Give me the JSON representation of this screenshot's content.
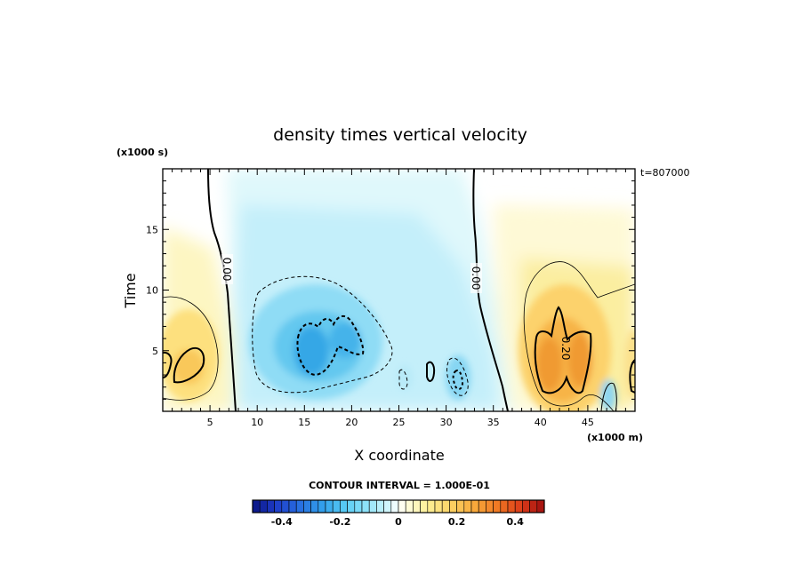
{
  "chart_data": {
    "type": "heatmap",
    "title": "density times vertical velocity",
    "xlabel": "X coordinate",
    "ylabel": "Time",
    "x_units": "(x1000 m)",
    "y_units": "(x1000 s)",
    "time_stamp": "t=807000",
    "contour_interval_label": "CONTOUR INTERVAL = 1.000E-01",
    "xlim": [
      0,
      50
    ],
    "ylim": [
      0,
      20
    ],
    "x_ticks": [
      5,
      10,
      15,
      20,
      25,
      30,
      35,
      40,
      45
    ],
    "y_ticks": [
      5,
      10,
      15
    ],
    "contour_labels": [
      "0.00",
      "0.00",
      "0.20"
    ],
    "colorbar": {
      "min": -0.5,
      "max": 0.5,
      "ticks": [
        "-0.4",
        "-0.2",
        "0",
        "0.2",
        "0.4"
      ],
      "tick_values": [
        -0.4,
        -0.2,
        0,
        0.2,
        0.4
      ]
    },
    "features": [
      {
        "x": 2.5,
        "y": 4.5,
        "value": 0.2
      },
      {
        "x": 15.5,
        "y": 5.0,
        "value": -0.23
      },
      {
        "x": 18.5,
        "y": 6.0,
        "value": -0.2
      },
      {
        "x": 31.0,
        "y": 2.5,
        "value": -0.15
      },
      {
        "x": 42.5,
        "y": 4.5,
        "value": 0.27
      },
      {
        "x": 45.0,
        "y": 5.0,
        "value": 0.25
      }
    ],
    "grid": false
  }
}
